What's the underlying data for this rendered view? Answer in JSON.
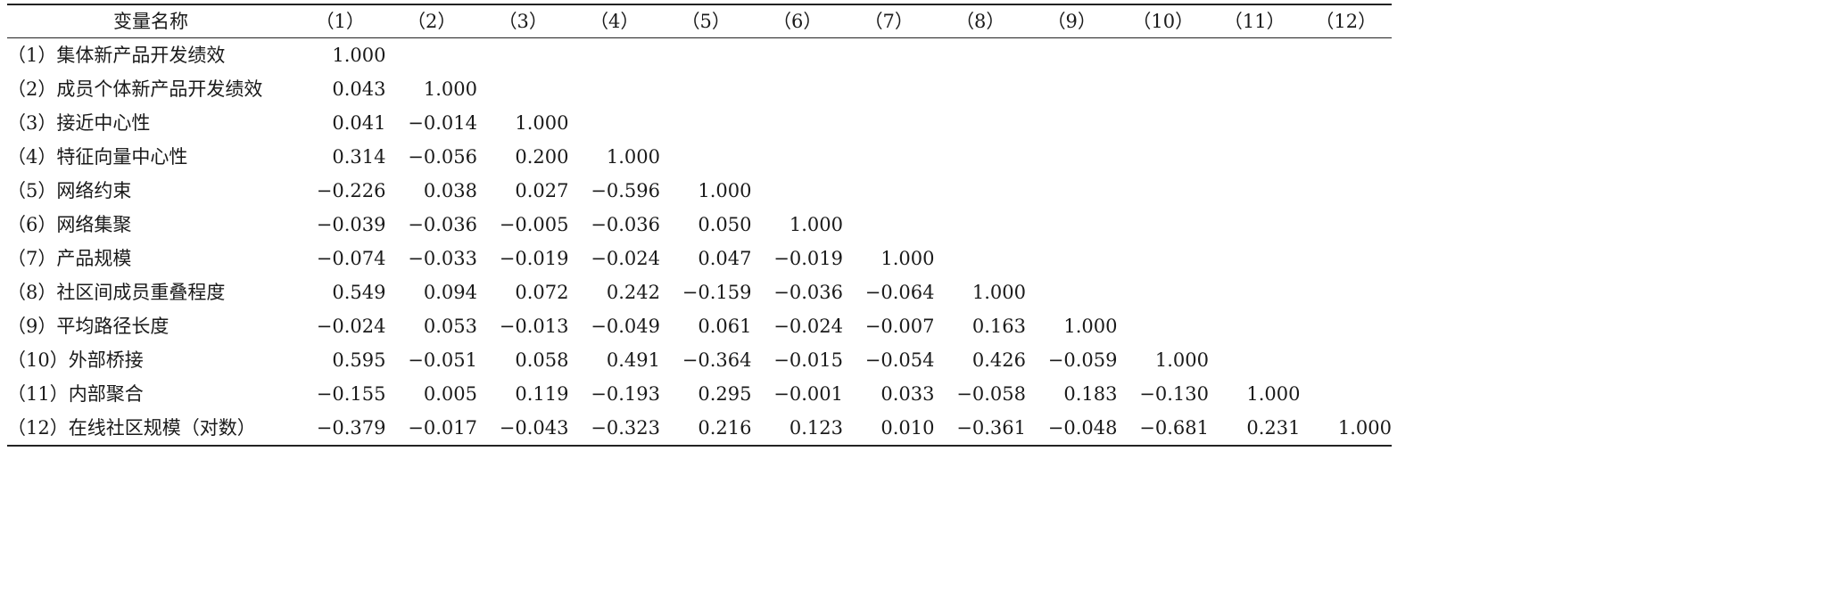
{
  "table": {
    "header_name": "变量名称",
    "columns": [
      "（1）",
      "（2）",
      "（3）",
      "（4）",
      "（5）",
      "（6）",
      "（7）",
      "（8）",
      "（9）",
      "（10）",
      "（11）",
      "（12）"
    ],
    "rows": [
      {
        "name": "（1）集体新产品开发绩效",
        "values": [
          "1.000"
        ]
      },
      {
        "name": "（2）成员个体新产品开发绩效",
        "values": [
          "0.043",
          "1.000"
        ]
      },
      {
        "name": "（3）接近中心性",
        "values": [
          "0.041",
          "−0.014",
          "1.000"
        ]
      },
      {
        "name": "（4）特征向量中心性",
        "values": [
          "0.314",
          "−0.056",
          "0.200",
          "1.000"
        ]
      },
      {
        "name": "（5）网络约束",
        "values": [
          "−0.226",
          "0.038",
          "0.027",
          "−0.596",
          "1.000"
        ]
      },
      {
        "name": "（6）网络集聚",
        "values": [
          "−0.039",
          "−0.036",
          "−0.005",
          "−0.036",
          "0.050",
          "1.000"
        ]
      },
      {
        "name": "（7）产品规模",
        "values": [
          "−0.074",
          "−0.033",
          "−0.019",
          "−0.024",
          "0.047",
          "−0.019",
          "1.000"
        ]
      },
      {
        "name": "（8）社区间成员重叠程度",
        "values": [
          "0.549",
          "0.094",
          "0.072",
          "0.242",
          "−0.159",
          "−0.036",
          "−0.064",
          "1.000"
        ]
      },
      {
        "name": "（9）平均路径长度",
        "values": [
          "−0.024",
          "0.053",
          "−0.013",
          "−0.049",
          "0.061",
          "−0.024",
          "−0.007",
          "0.163",
          "1.000"
        ]
      },
      {
        "name": "（10）外部桥接",
        "values": [
          "0.595",
          "−0.051",
          "0.058",
          "0.491",
          "−0.364",
          "−0.015",
          "−0.054",
          "0.426",
          "−0.059",
          "1.000"
        ]
      },
      {
        "name": "（11）内部聚合",
        "values": [
          "−0.155",
          "0.005",
          "0.119",
          "−0.193",
          "0.295",
          "−0.001",
          "0.033",
          "−0.058",
          "0.183",
          "−0.130",
          "1.000"
        ]
      },
      {
        "name": "（12）在线社区规模（对数）",
        "values": [
          "−0.379",
          "−0.017",
          "−0.043",
          "−0.323",
          "0.216",
          "0.123",
          "0.010",
          "−0.361",
          "−0.048",
          "−0.681",
          "0.231",
          "1.000"
        ]
      }
    ]
  }
}
